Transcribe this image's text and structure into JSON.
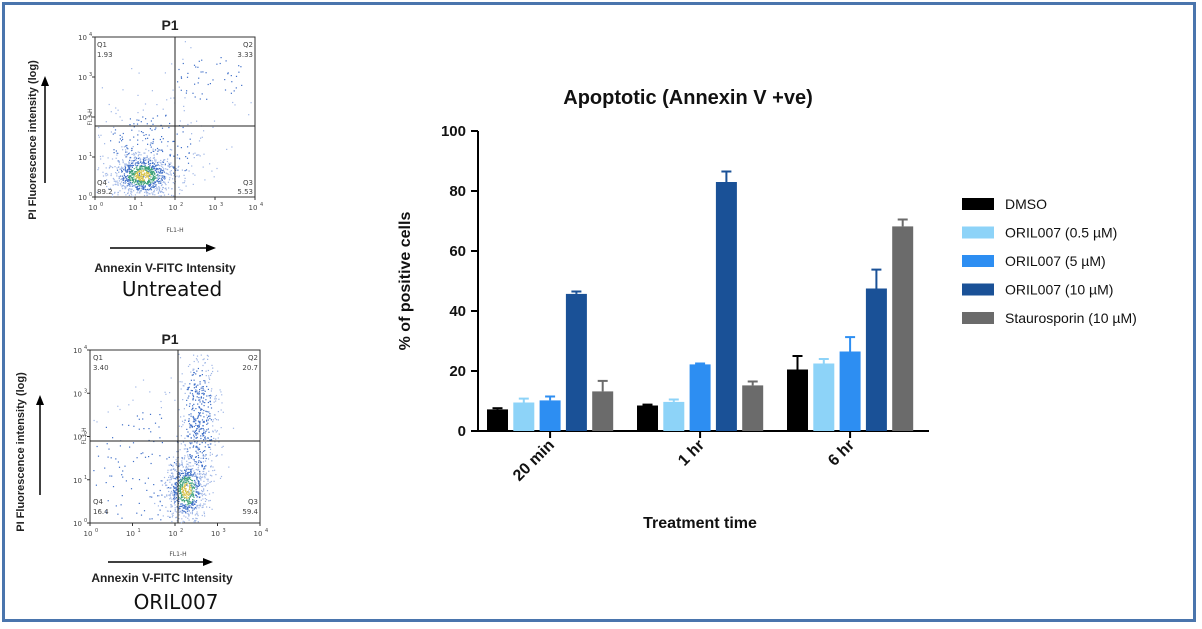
{
  "flow_panels": [
    {
      "title": "P1",
      "y_axis_label": "PI Fluorescence intensity (log)",
      "x_axis_label": "Annexin V-FITC Intensity",
      "x_param": "FL1-H",
      "y_param": "FL3-H",
      "caption": "Untreated",
      "y_ticks": [
        "10",
        "10",
        "10",
        "10",
        "10"
      ],
      "y_tick_exps": [
        "0",
        "1",
        "2",
        "3",
        "4"
      ],
      "x_ticks": [
        "10",
        "10",
        "10",
        "10",
        "10"
      ],
      "x_tick_exps": [
        "0",
        "1",
        "2",
        "3",
        "4"
      ],
      "quadrants": [
        {
          "name": "Q1",
          "value": "1.93"
        },
        {
          "name": "Q2",
          "value": "3.33"
        },
        {
          "name": "Q3",
          "value": "5.53"
        },
        {
          "name": "Q4",
          "value": "89.2"
        }
      ]
    },
    {
      "title": "P1",
      "y_axis_label": "PI Fluorescence intensity (log)",
      "x_axis_label": "Annexin V-FITC Intensity",
      "x_param": "FL1-H",
      "y_param": "FL3-H",
      "caption": "ORIL007",
      "y_ticks": [
        "10",
        "10",
        "10",
        "10",
        "10"
      ],
      "y_tick_exps": [
        "0",
        "1",
        "2",
        "3",
        "4"
      ],
      "x_ticks": [
        "10",
        "10",
        "10",
        "10",
        "10"
      ],
      "x_tick_exps": [
        "0",
        "1",
        "2",
        "3",
        "4"
      ],
      "quadrants": [
        {
          "name": "Q1",
          "value": "3.40"
        },
        {
          "name": "Q2",
          "value": "20.7"
        },
        {
          "name": "Q3",
          "value": "59.4"
        },
        {
          "name": "Q4",
          "value": "16.4"
        }
      ]
    }
  ],
  "chart_data": {
    "type": "bar",
    "title": "Apoptotic (Annexin V +ve)",
    "xlabel": "Treatment time",
    "ylabel": "% of positive cells",
    "ylim": [
      0,
      100
    ],
    "yticks": [
      0,
      20,
      40,
      60,
      80,
      100
    ],
    "categories": [
      "20 min",
      "1 hr",
      "6 hr"
    ],
    "legend_position": "right",
    "grid": false,
    "series": [
      {
        "name": "DMSO",
        "color": "#000000",
        "values": [
          7.2,
          8.5,
          20.5
        ],
        "errors": [
          0.4,
          0.3,
          4.5
        ]
      },
      {
        "name": "ORIL007 (0.5 µM)",
        "color": "#8dd3f8",
        "values": [
          9.5,
          9.7,
          22.5
        ],
        "errors": [
          1.3,
          0.8,
          1.5
        ]
      },
      {
        "name": "ORIL007 (5 µM)",
        "color": "#2d8ef2",
        "values": [
          10.2,
          22.2,
          26.5
        ],
        "errors": [
          1.3,
          0.3,
          4.8
        ]
      },
      {
        "name": "ORIL007 (10 µM)",
        "color": "#1a5197",
        "values": [
          45.7,
          83.0,
          47.5
        ],
        "errors": [
          0.8,
          3.5,
          6.3
        ]
      },
      {
        "name": "Staurosporin  (10 µM)",
        "color": "#6b6b6b",
        "values": [
          13.2,
          15.2,
          68.2
        ],
        "errors": [
          3.5,
          1.3,
          2.3
        ]
      }
    ]
  }
}
